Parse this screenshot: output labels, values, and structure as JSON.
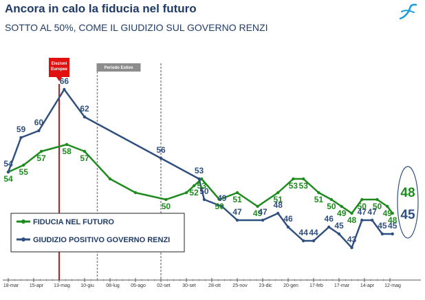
{
  "header": {
    "title": "Ancora in calo la fiducia nel futuro",
    "subtitle": "SOTTO AL 50%, COME IL GIUDIZIO SUL GOVERNO RENZI"
  },
  "logo": {
    "icon": "swirl-logo-icon",
    "color": "#1a9ad6"
  },
  "colors": {
    "green": "#1e8a1e",
    "blue": "#2f4f80",
    "red": "#e01010",
    "grey": "#888888"
  },
  "chart_data": {
    "type": "line",
    "x_ticks": [
      "18-mar",
      "15-apr",
      "13-mag",
      "10-giu",
      "08-lug",
      "05-ago",
      "02-set",
      "30-set",
      "28-ott",
      "25-nov",
      "23-dic",
      "20-gen",
      "17-feb",
      "17-mar",
      "14-apr",
      "12-mag"
    ],
    "annotations": [
      {
        "label_lines": [
          "Elezioni",
          "Europee"
        ],
        "x": 2.0,
        "style": "solid-red"
      },
      {
        "label_lines": [
          "Periodo Estivo"
        ],
        "x": 3.5,
        "style": "dashed-grey"
      },
      {
        "label_lines": [],
        "x": 6.0,
        "style": "dashed-grey"
      }
    ],
    "series": [
      {
        "name": "FIDUCIA NEL FUTURO",
        "color": "#1e8a1e",
        "points": [
          {
            "x": 0.0,
            "y": 54,
            "label": "54"
          },
          {
            "x": 0.6,
            "y": 55,
            "label": "55"
          },
          {
            "x": 1.3,
            "y": 57,
            "label": "57"
          },
          {
            "x": 2.3,
            "y": 58,
            "label": "58"
          },
          {
            "x": 3.0,
            "y": 57,
            "label": "57"
          },
          {
            "x": 4.0,
            "y": 53
          },
          {
            "x": 5.0,
            "y": 51
          },
          {
            "x": 6.2,
            "y": 50,
            "label": "50"
          },
          {
            "x": 7.0,
            "y": 51
          },
          {
            "x": 7.3,
            "y": 52,
            "label": "52"
          },
          {
            "x": 7.6,
            "y": 53,
            "label": "53"
          },
          {
            "x": 8.3,
            "y": 50,
            "label": "50"
          },
          {
            "x": 9.0,
            "y": 51,
            "label": "51"
          },
          {
            "x": 9.8,
            "y": 49,
            "label": "49"
          },
          {
            "x": 10.6,
            "y": 51,
            "label": "51"
          },
          {
            "x": 11.2,
            "y": 53,
            "label": "53"
          },
          {
            "x": 11.6,
            "y": 53,
            "label": "53"
          },
          {
            "x": 12.2,
            "y": 51,
            "label": "51"
          },
          {
            "x": 12.7,
            "y": 50,
            "label": "50"
          },
          {
            "x": 13.1,
            "y": 49,
            "label": "49"
          },
          {
            "x": 13.5,
            "y": 48,
            "label": "48"
          },
          {
            "x": 13.9,
            "y": 50,
            "label": "50"
          },
          {
            "x": 14.5,
            "y": 50,
            "label": "50"
          },
          {
            "x": 14.9,
            "y": 49,
            "label": "49"
          },
          {
            "x": 15.1,
            "y": 48,
            "label": "48"
          }
        ]
      },
      {
        "name": "GIUDIZIO POSITIVO GOVERNO RENZI",
        "color": "#2f4f80",
        "points": [
          {
            "x": 0.0,
            "y": 54,
            "label": "54"
          },
          {
            "x": 0.5,
            "y": 59,
            "label": "59"
          },
          {
            "x": 1.2,
            "y": 60,
            "label": "60"
          },
          {
            "x": 2.2,
            "y": 66,
            "label": "66"
          },
          {
            "x": 3.0,
            "y": 62,
            "label": "62"
          },
          {
            "x": 6.0,
            "y": 56,
            "label": "56"
          },
          {
            "x": 7.5,
            "y": 53,
            "label": "53"
          },
          {
            "x": 7.7,
            "y": 50,
            "label": "50"
          },
          {
            "x": 8.4,
            "y": 49,
            "label": "49"
          },
          {
            "x": 9.0,
            "y": 47,
            "label": "47"
          },
          {
            "x": 10.0,
            "y": 47,
            "label": "47"
          },
          {
            "x": 10.6,
            "y": 48,
            "label": "48"
          },
          {
            "x": 11.0,
            "y": 46,
            "label": "46"
          },
          {
            "x": 11.6,
            "y": 44,
            "label": "44"
          },
          {
            "x": 12.0,
            "y": 44,
            "label": "44"
          },
          {
            "x": 12.6,
            "y": 46,
            "label": "46"
          },
          {
            "x": 13.0,
            "y": 45,
            "label": "45"
          },
          {
            "x": 13.5,
            "y": 43,
            "label": "43"
          },
          {
            "x": 13.9,
            "y": 47,
            "label": "47"
          },
          {
            "x": 14.3,
            "y": 47,
            "label": "47"
          },
          {
            "x": 14.7,
            "y": 45,
            "label": "45"
          },
          {
            "x": 15.1,
            "y": 45,
            "label": "45"
          }
        ]
      }
    ],
    "final_values": {
      "green": "48",
      "blue": "45"
    },
    "ylim": [
      40,
      70
    ],
    "legend": "bottom-left"
  }
}
